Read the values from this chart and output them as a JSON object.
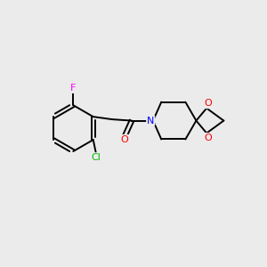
{
  "background_color": "#ebebeb",
  "bond_color": "#000000",
  "atom_colors": {
    "F": "#ff00ff",
    "Cl": "#00bb00",
    "O": "#ff0000",
    "N": "#0000ff",
    "C": "#000000"
  },
  "figsize": [
    3.0,
    3.0
  ],
  "dpi": 100
}
